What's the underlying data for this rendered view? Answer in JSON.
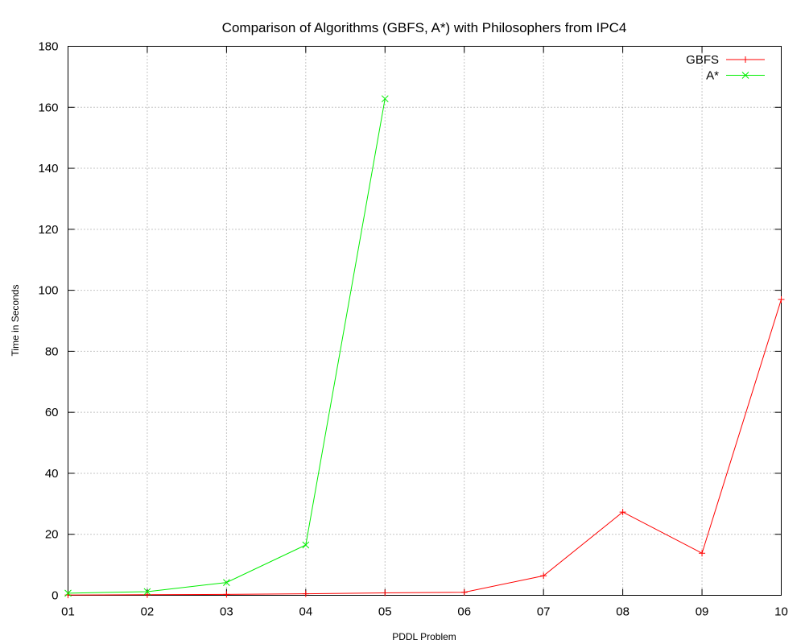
{
  "chart_data": {
    "type": "line",
    "title": "Comparison of Algorithms (GBFS, A*) with Philosophers from IPC4",
    "xlabel": "PDDL Problem",
    "ylabel": "Time in Seconds",
    "categories": [
      "01",
      "02",
      "03",
      "04",
      "05",
      "06",
      "07",
      "08",
      "09",
      "10"
    ],
    "ylim": [
      0,
      180
    ],
    "yticks": [
      0,
      20,
      40,
      60,
      80,
      100,
      120,
      140,
      160,
      180
    ],
    "grid": true,
    "legend_position": "top-right",
    "series": [
      {
        "name": "GBFS",
        "color": "#ff0000",
        "marker": "plus",
        "values": [
          0.1,
          0.2,
          0.3,
          0.5,
          0.8,
          1.0,
          6.4,
          27.3,
          13.8,
          97.0
        ]
      },
      {
        "name": "A*",
        "color": "#00ee00",
        "marker": "cross",
        "values": [
          0.7,
          1.2,
          4.2,
          16.5,
          162.8,
          null,
          null,
          null,
          null,
          null
        ]
      }
    ]
  }
}
